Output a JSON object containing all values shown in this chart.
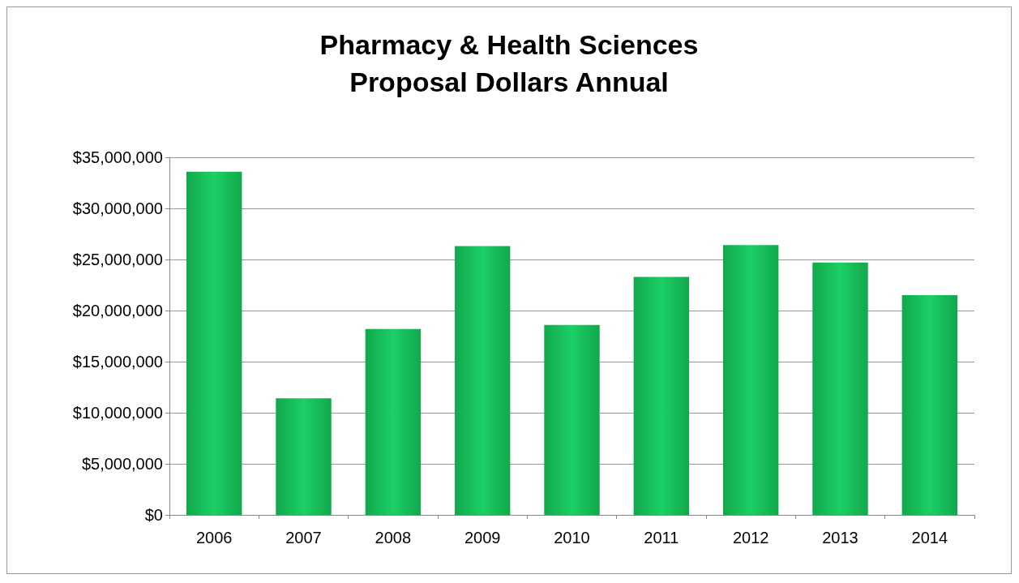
{
  "chart_data": {
    "type": "bar",
    "title": "Pharmacy & Health Sciences\nProposal Dollars Annual",
    "categories": [
      "2006",
      "2007",
      "2008",
      "2009",
      "2010",
      "2011",
      "2012",
      "2013",
      "2014"
    ],
    "values": [
      33600000,
      11400000,
      18200000,
      26300000,
      18600000,
      23300000,
      26400000,
      24700000,
      21500000
    ],
    "color": "#11a84c",
    "ylim": [
      0,
      35000000
    ],
    "yticks": [
      {
        "value": 0,
        "label": "$0"
      },
      {
        "value": 5000000,
        "label": "$5,000,000"
      },
      {
        "value": 10000000,
        "label": "$10,000,000"
      },
      {
        "value": 15000000,
        "label": "$15,000,000"
      },
      {
        "value": 20000000,
        "label": "$20,000,000"
      },
      {
        "value": 25000000,
        "label": "$25,000,000"
      },
      {
        "value": 30000000,
        "label": "$30,000,000"
      },
      {
        "value": 35000000,
        "label": "$35,000,000"
      }
    ],
    "grid": "y"
  }
}
